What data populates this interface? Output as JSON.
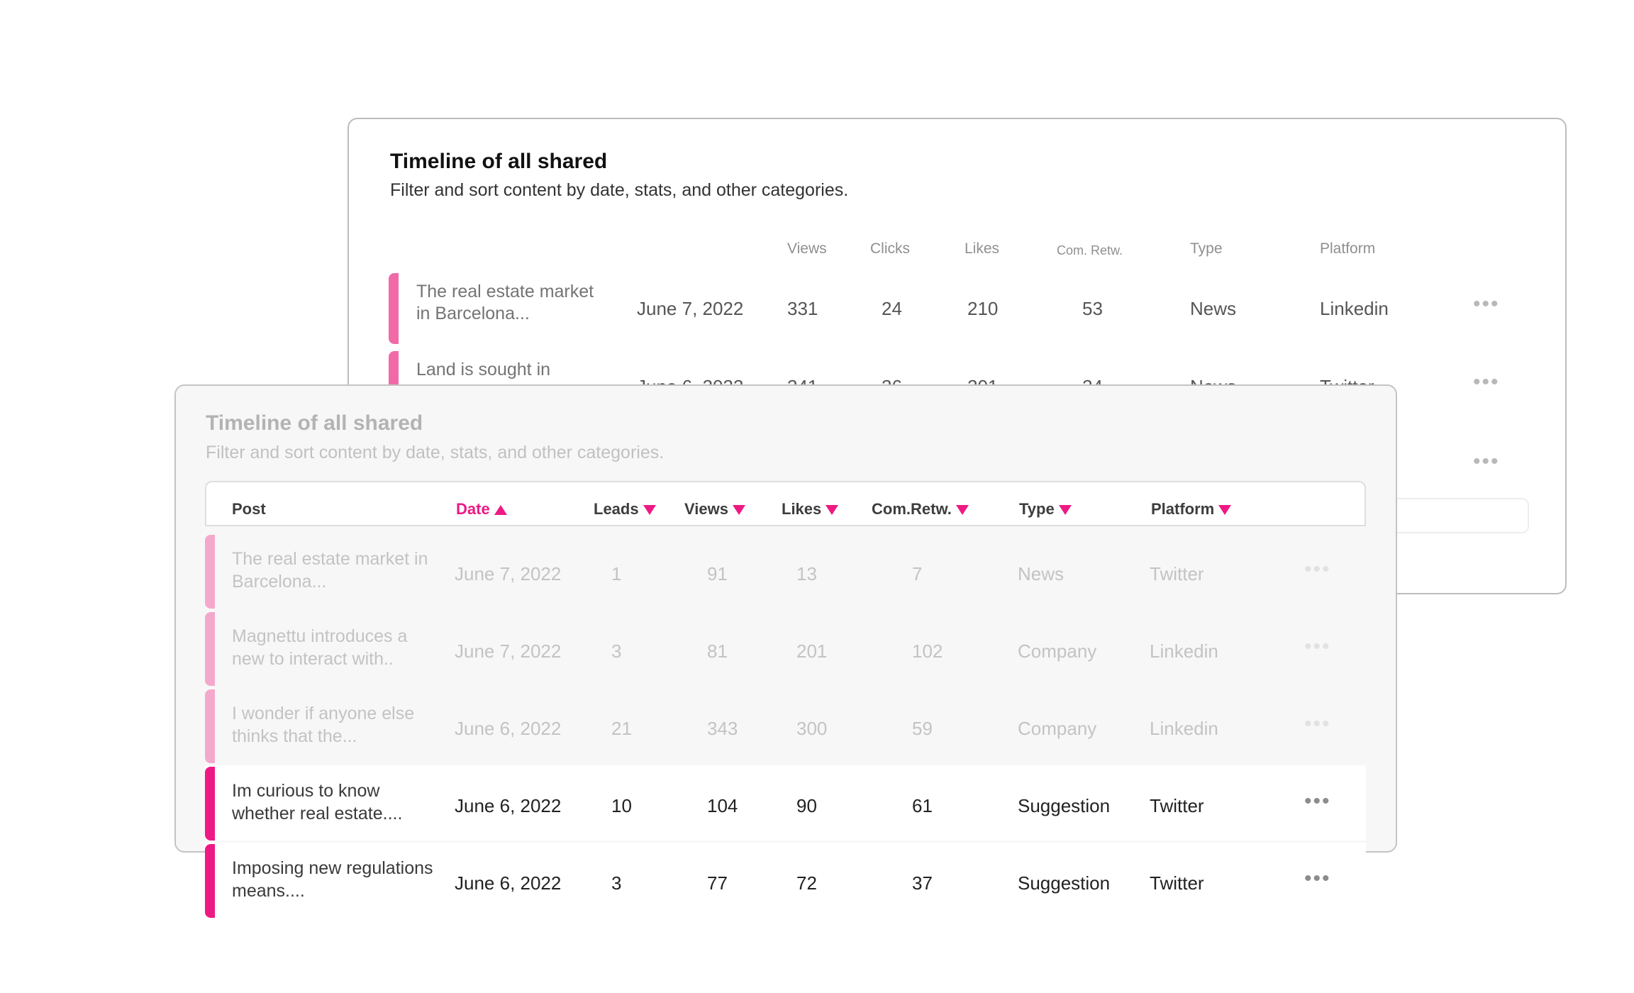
{
  "back_panel": {
    "title": "Timeline of all shared",
    "subtitle": "Filter and sort content by date, stats, and other categories.",
    "headers": {
      "views": "Views",
      "clicks": "Clicks",
      "likes": "Likes",
      "com_retw": "Com. Retw.",
      "type": "Type",
      "platform": "Platform"
    },
    "rows": [
      {
        "post": "The real estate market in Barcelona...",
        "date": "June 7, 2022",
        "views": "331",
        "clicks": "24",
        "likes": "210",
        "com_retw": "53",
        "type": "News",
        "platform": "Linkedin"
      },
      {
        "post": "Land is sought in",
        "date": "June 6, 2022",
        "views": "341",
        "clicks": "36",
        "likes": "201",
        "com_retw": "24",
        "type": "News",
        "platform": "Twitter"
      }
    ],
    "more_icon": "•••"
  },
  "front_panel": {
    "title": "Timeline of all shared",
    "subtitle": "Filter and sort content by date, stats, and other categories.",
    "headers": {
      "post": "Post",
      "date": "Date",
      "leads": "Leads",
      "views": "Views",
      "likes": "Likes",
      "com_retw": "Com.Retw.",
      "type": "Type",
      "platform": "Platform"
    },
    "sort": {
      "column": "date",
      "direction": "ascending"
    },
    "rows": [
      {
        "post": "The real estate market in Barcelona...",
        "date": "June 7, 2022",
        "leads": "1",
        "views": "91",
        "likes": "13",
        "com_retw": "7",
        "type": "News",
        "platform": "Twitter"
      },
      {
        "post": "Magnettu introduces a new to interact with..",
        "date": "June 7, 2022",
        "leads": "3",
        "views": "81",
        "likes": "201",
        "com_retw": "102",
        "type": "Company",
        "platform": "Linkedin"
      },
      {
        "post": "I wonder if anyone else thinks that the...",
        "date": "June 6, 2022",
        "leads": "21",
        "views": "343",
        "likes": "300",
        "com_retw": "59",
        "type": "Company",
        "platform": "Linkedin"
      },
      {
        "post": "Im curious to know whether real estate....",
        "date": "June 6, 2022",
        "leads": "10",
        "views": "104",
        "likes": "90",
        "com_retw": "61",
        "type": "Suggestion",
        "platform": "Twitter"
      },
      {
        "post": "Imposing new regulations means....",
        "date": "June 6, 2022",
        "leads": "3",
        "views": "77",
        "likes": "72",
        "com_retw": "37",
        "type": "Suggestion",
        "platform": "Twitter"
      }
    ],
    "more_icon": "•••"
  },
  "colors": {
    "accent_pink": "#ed1a84",
    "accent_pink_light": "#f4a8cc",
    "back_accent": "#f06aa8"
  }
}
